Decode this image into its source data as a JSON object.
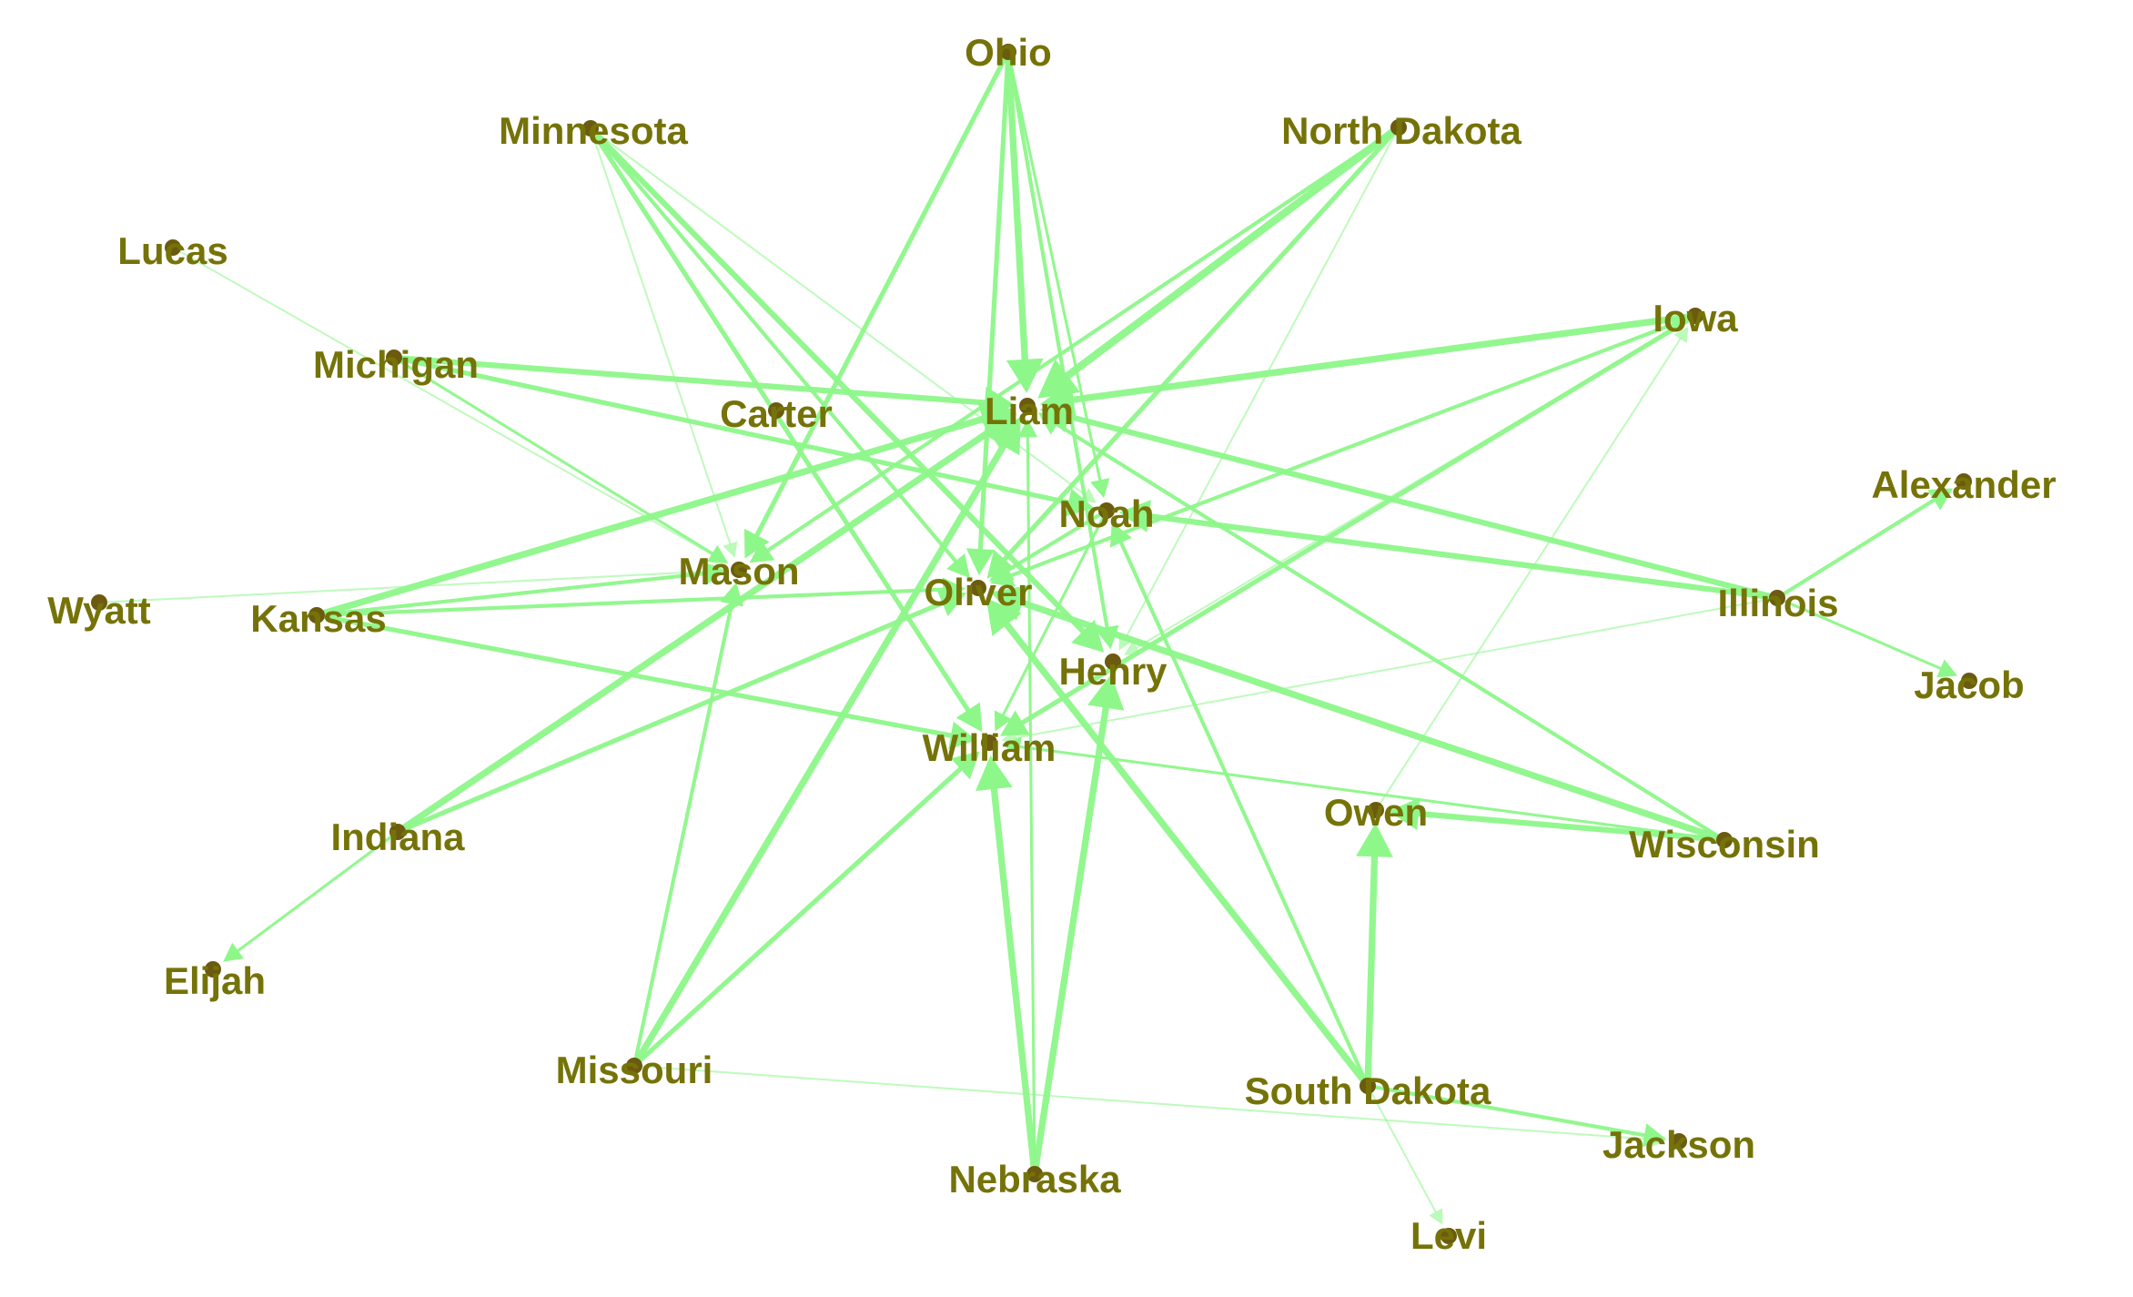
{
  "colors": {
    "edge": "#8ef78a",
    "label": "#757308",
    "node": "#6b5a10",
    "background": "#ffffff"
  },
  "nodes": [
    {
      "id": "Ohio",
      "label": "Ohio"
    },
    {
      "id": "Minnesota",
      "label": "Minnesota"
    },
    {
      "id": "North Dakota",
      "label": "North Dakota"
    },
    {
      "id": "Lucas",
      "label": "Lucas"
    },
    {
      "id": "Iowa",
      "label": "Iowa"
    },
    {
      "id": "Michigan",
      "label": "Michigan"
    },
    {
      "id": "Carter",
      "label": "Carter"
    },
    {
      "id": "Liam",
      "label": "Liam"
    },
    {
      "id": "Alexander",
      "label": "Alexander"
    },
    {
      "id": "Noah",
      "label": "Noah"
    },
    {
      "id": "Mason",
      "label": "Mason"
    },
    {
      "id": "Wyatt",
      "label": "Wyatt"
    },
    {
      "id": "Kansas",
      "label": "Kansas"
    },
    {
      "id": "Oliver",
      "label": "Oliver"
    },
    {
      "id": "Illinois",
      "label": "Illinois"
    },
    {
      "id": "Henry",
      "label": "Henry"
    },
    {
      "id": "Jacob",
      "label": "Jacob"
    },
    {
      "id": "William",
      "label": "William"
    },
    {
      "id": "Owen",
      "label": "Owen"
    },
    {
      "id": "Wisconsin",
      "label": "Wisconsin"
    },
    {
      "id": "Indiana",
      "label": "Indiana"
    },
    {
      "id": "Elijah",
      "label": "Elijah"
    },
    {
      "id": "Missouri",
      "label": "Missouri"
    },
    {
      "id": "South Dakota",
      "label": "South Dakota"
    },
    {
      "id": "Jackson",
      "label": "Jackson"
    },
    {
      "id": "Nebraska",
      "label": "Nebraska"
    },
    {
      "id": "Levi",
      "label": "Levi"
    }
  ],
  "edges": [
    {
      "source": "Ohio",
      "target": "Liam",
      "weight": 6
    },
    {
      "source": "Ohio",
      "target": "Oliver",
      "weight": 4
    },
    {
      "source": "Ohio",
      "target": "Mason",
      "weight": 4
    },
    {
      "source": "Ohio",
      "target": "Henry",
      "weight": 3
    },
    {
      "source": "Ohio",
      "target": "Noah",
      "weight": 2
    },
    {
      "source": "Minnesota",
      "target": "Henry",
      "weight": 5
    },
    {
      "source": "Minnesota",
      "target": "William",
      "weight": 4
    },
    {
      "source": "Minnesota",
      "target": "Oliver",
      "weight": 3
    },
    {
      "source": "Minnesota",
      "target": "Mason",
      "weight": 1
    },
    {
      "source": "Minnesota",
      "target": "Noah",
      "weight": 1
    },
    {
      "source": "North Dakota",
      "target": "Liam",
      "weight": 7
    },
    {
      "source": "North Dakota",
      "target": "Oliver",
      "weight": 4
    },
    {
      "source": "North Dakota",
      "target": "Mason",
      "weight": 3
    },
    {
      "source": "North Dakota",
      "target": "Henry",
      "weight": 1
    },
    {
      "source": "Lucas",
      "target": "Mason",
      "weight": 1
    },
    {
      "source": "Iowa",
      "target": "Liam",
      "weight": 6
    },
    {
      "source": "Iowa",
      "target": "William",
      "weight": 4
    },
    {
      "source": "Iowa",
      "target": "Oliver",
      "weight": 3
    },
    {
      "source": "Iowa",
      "target": "Henry",
      "weight": 1
    },
    {
      "source": "Michigan",
      "target": "Liam",
      "weight": 5
    },
    {
      "source": "Michigan",
      "target": "Noah",
      "weight": 4
    },
    {
      "source": "Michigan",
      "target": "Mason",
      "weight": 2
    },
    {
      "source": "Illinois",
      "target": "Liam",
      "weight": 5
    },
    {
      "source": "Illinois",
      "target": "Noah",
      "weight": 5
    },
    {
      "source": "Illinois",
      "target": "Alexander",
      "weight": 3
    },
    {
      "source": "Illinois",
      "target": "Jacob",
      "weight": 2
    },
    {
      "source": "Illinois",
      "target": "William",
      "weight": 1
    },
    {
      "source": "Kansas",
      "target": "Liam",
      "weight": 6
    },
    {
      "source": "Kansas",
      "target": "William",
      "weight": 4
    },
    {
      "source": "Kansas",
      "target": "Mason",
      "weight": 3
    },
    {
      "source": "Kansas",
      "target": "Oliver",
      "weight": 3
    },
    {
      "source": "Wyatt",
      "target": "Mason",
      "weight": 1
    },
    {
      "source": "Indiana",
      "target": "Liam",
      "weight": 6
    },
    {
      "source": "Indiana",
      "target": "Oliver",
      "weight": 4
    },
    {
      "source": "Indiana",
      "target": "Elijah",
      "weight": 2
    },
    {
      "source": "Missouri",
      "target": "Liam",
      "weight": 6
    },
    {
      "source": "Missouri",
      "target": "William",
      "weight": 4
    },
    {
      "source": "Missouri",
      "target": "Mason",
      "weight": 3
    },
    {
      "source": "Missouri",
      "target": "Jackson",
      "weight": 1
    },
    {
      "source": "Nebraska",
      "target": "William",
      "weight": 6
    },
    {
      "source": "Nebraska",
      "target": "Henry",
      "weight": 6
    },
    {
      "source": "Nebraska",
      "target": "Liam",
      "weight": 2
    },
    {
      "source": "South Dakota",
      "target": "Owen",
      "weight": 6
    },
    {
      "source": "South Dakota",
      "target": "Oliver",
      "weight": 6
    },
    {
      "source": "South Dakota",
      "target": "Noah",
      "weight": 3
    },
    {
      "source": "South Dakota",
      "target": "Levi",
      "weight": 1
    },
    {
      "source": "South Dakota",
      "target": "Jackson",
      "weight": 3
    },
    {
      "source": "Wisconsin",
      "target": "Owen",
      "weight": 5
    },
    {
      "source": "Wisconsin",
      "target": "Oliver",
      "weight": 6
    },
    {
      "source": "Wisconsin",
      "target": "Liam",
      "weight": 3
    },
    {
      "source": "Wisconsin",
      "target": "William",
      "weight": 2
    },
    {
      "source": "Noah",
      "target": "Oliver",
      "weight": 3
    },
    {
      "source": "Noah",
      "target": "William",
      "weight": 2
    },
    {
      "source": "Owen",
      "target": "Iowa",
      "weight": 1
    }
  ]
}
